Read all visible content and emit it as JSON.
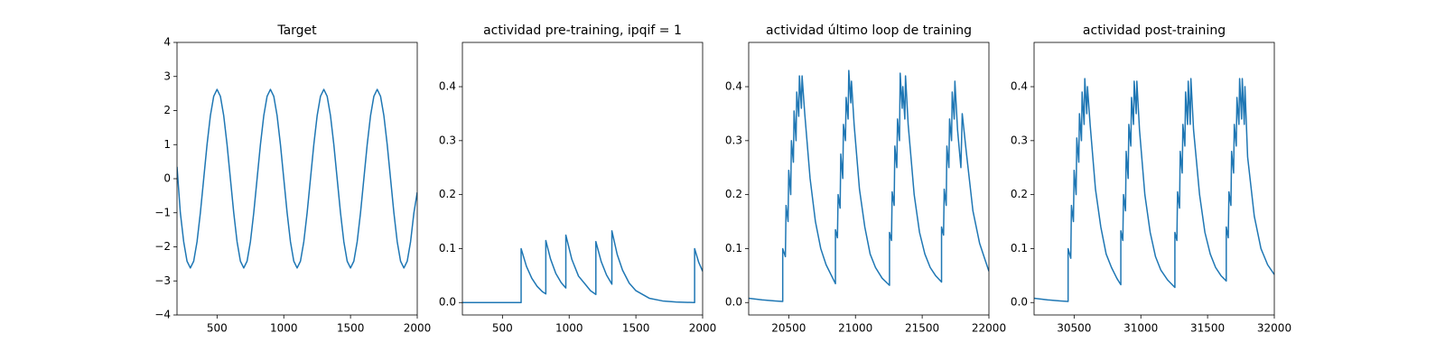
{
  "chart_data": [
    {
      "type": "line",
      "title": "Target",
      "color": "#1f77b4",
      "xlim": [
        200,
        2000
      ],
      "ylim": [
        -4,
        4
      ],
      "xticks": [
        500,
        1000,
        1500,
        2000
      ],
      "yticks": [
        {
          "value": -4,
          "label": "−4"
        },
        {
          "value": -3,
          "label": "−3"
        },
        {
          "value": -2,
          "label": "−2"
        },
        {
          "value": -1,
          "label": "−1"
        },
        0,
        1,
        2,
        3,
        4
      ],
      "x": [
        200,
        225,
        250,
        275,
        300,
        325,
        350,
        375,
        400,
        425,
        450,
        475,
        500,
        525,
        550,
        575,
        600,
        625,
        650,
        675,
        700,
        725,
        750,
        775,
        800,
        825,
        850,
        875,
        900,
        925,
        950,
        975,
        1000,
        1025,
        1050,
        1075,
        1100,
        1125,
        1150,
        1175,
        1200,
        1225,
        1250,
        1275,
        1300,
        1325,
        1350,
        1375,
        1400,
        1425,
        1450,
        1475,
        1500,
        1525,
        1550,
        1575,
        1600,
        1625,
        1650,
        1675,
        1700,
        1725,
        1750,
        1775,
        1800,
        1825,
        1850,
        1875,
        1900,
        1925,
        1950,
        1975,
        2000
      ],
      "values": [
        0.35,
        -1.0,
        -1.85,
        -2.42,
        -2.62,
        -2.42,
        -1.85,
        -1.0,
        0,
        1.0,
        1.85,
        2.42,
        2.62,
        2.42,
        1.85,
        1.0,
        0,
        -1.0,
        -1.85,
        -2.42,
        -2.62,
        -2.42,
        -1.85,
        -1.0,
        0,
        1.0,
        1.85,
        2.42,
        2.62,
        2.42,
        1.85,
        1.0,
        0,
        -1.0,
        -1.85,
        -2.42,
        -2.62,
        -2.42,
        -1.85,
        -1.0,
        0,
        1.0,
        1.85,
        2.42,
        2.62,
        2.42,
        1.85,
        1.0,
        0,
        -1.0,
        -1.85,
        -2.42,
        -2.62,
        -2.42,
        -1.85,
        -1.0,
        0,
        1.0,
        1.85,
        2.42,
        2.62,
        2.42,
        1.85,
        1.0,
        0,
        -1.0,
        -1.85,
        -2.42,
        -2.62,
        -2.42,
        -1.85,
        -1.0,
        -0.4
      ]
    },
    {
      "type": "line",
      "title": "actividad pre-training, ipqif = 1",
      "color": "#1f77b4",
      "xlim": [
        200,
        2000
      ],
      "ylim": [
        -0.023,
        0.482
      ],
      "xticks": [
        500,
        1000,
        1500,
        2000
      ],
      "yticks": [
        {
          "value": 0,
          "label": "0.0"
        },
        0.1,
        0.2,
        0.3,
        0.4
      ],
      "x": [
        200,
        640,
        640,
        680,
        720,
        760,
        800,
        825,
        825,
        860,
        900,
        940,
        975,
        975,
        1020,
        1070,
        1120,
        1160,
        1200,
        1200,
        1240,
        1280,
        1320,
        1320,
        1360,
        1400,
        1450,
        1500,
        1600,
        1700,
        1800,
        1940,
        1940,
        1970,
        2000
      ],
      "values": [
        0,
        0,
        0.1,
        0.067,
        0.045,
        0.03,
        0.02,
        0.016,
        0.115,
        0.081,
        0.054,
        0.037,
        0.027,
        0.125,
        0.08,
        0.049,
        0.034,
        0.022,
        0.015,
        0.113,
        0.076,
        0.051,
        0.034,
        0.133,
        0.089,
        0.06,
        0.036,
        0.022,
        0.008,
        0.003,
        0.001,
        0,
        0.1,
        0.075,
        0.058
      ]
    },
    {
      "type": "line",
      "title": "actividad último loop de training",
      "color": "#1f77b4",
      "xlim": [
        20200,
        22000
      ],
      "ylim": [
        -0.023,
        0.482
      ],
      "xticks": [
        20500,
        21000,
        21500,
        22000
      ],
      "yticks": [
        {
          "value": 0,
          "label": "0.0"
        },
        0.1,
        0.2,
        0.3,
        0.4
      ],
      "x": [
        20200,
        20300,
        20400,
        20455,
        20455,
        20475,
        20480,
        20495,
        20500,
        20515,
        20520,
        20535,
        20540,
        20555,
        20560,
        20575,
        20580,
        20595,
        20600,
        20620,
        20660,
        20700,
        20740,
        20780,
        20820,
        20850,
        20850,
        20865,
        20870,
        20885,
        20890,
        20905,
        20910,
        20925,
        20930,
        20945,
        20950,
        20965,
        20970,
        20990,
        21030,
        21070,
        21110,
        21150,
        21200,
        21255,
        21255,
        21270,
        21275,
        21290,
        21295,
        21310,
        21315,
        21330,
        21335,
        21350,
        21355,
        21370,
        21375,
        21395,
        21440,
        21480,
        21520,
        21560,
        21600,
        21645,
        21645,
        21660,
        21665,
        21680,
        21685,
        21700,
        21705,
        21720,
        21725,
        21740,
        21745,
        21765,
        21790,
        21800,
        21830,
        21880,
        21930,
        21970,
        22000
      ],
      "values": [
        0.008,
        0.005,
        0.003,
        0.002,
        0.1,
        0.085,
        0.18,
        0.15,
        0.245,
        0.2,
        0.3,
        0.26,
        0.355,
        0.3,
        0.39,
        0.345,
        0.42,
        0.36,
        0.42,
        0.35,
        0.23,
        0.15,
        0.1,
        0.07,
        0.05,
        0.035,
        0.135,
        0.12,
        0.2,
        0.175,
        0.275,
        0.23,
        0.33,
        0.3,
        0.38,
        0.34,
        0.43,
        0.37,
        0.41,
        0.33,
        0.21,
        0.14,
        0.09,
        0.065,
        0.045,
        0.032,
        0.13,
        0.115,
        0.205,
        0.18,
        0.29,
        0.25,
        0.34,
        0.3,
        0.425,
        0.36,
        0.4,
        0.34,
        0.42,
        0.33,
        0.2,
        0.13,
        0.09,
        0.065,
        0.05,
        0.038,
        0.14,
        0.125,
        0.21,
        0.18,
        0.29,
        0.25,
        0.34,
        0.3,
        0.39,
        0.34,
        0.41,
        0.32,
        0.25,
        0.35,
        0.28,
        0.17,
        0.11,
        0.08,
        0.058
      ]
    },
    {
      "type": "line",
      "title": "actividad post-training",
      "color": "#1f77b4",
      "xlim": [
        30200,
        32000
      ],
      "ylim": [
        -0.023,
        0.482
      ],
      "xticks": [
        30500,
        31000,
        31500,
        32000
      ],
      "yticks": [
        {
          "value": 0,
          "label": "0.0"
        },
        0.1,
        0.2,
        0.3,
        0.4
      ],
      "x": [
        30200,
        30300,
        30400,
        30455,
        30455,
        30475,
        30480,
        30495,
        30500,
        30515,
        30520,
        30535,
        30540,
        30555,
        30560,
        30575,
        30580,
        30595,
        30600,
        30620,
        30660,
        30700,
        30740,
        30780,
        30820,
        30850,
        30850,
        30865,
        30870,
        30885,
        30890,
        30905,
        30910,
        30925,
        30930,
        30945,
        30950,
        30965,
        30970,
        30990,
        31030,
        31070,
        31110,
        31150,
        31200,
        31255,
        31255,
        31270,
        31275,
        31290,
        31295,
        31310,
        31315,
        31330,
        31335,
        31350,
        31355,
        31370,
        31375,
        31395,
        31440,
        31480,
        31520,
        31560,
        31600,
        31640,
        31640,
        31655,
        31660,
        31675,
        31680,
        31695,
        31700,
        31715,
        31720,
        31735,
        31740,
        31755,
        31760,
        31775,
        31780,
        31800,
        31850,
        31900,
        31950,
        32000
      ],
      "values": [
        0.008,
        0.005,
        0.003,
        0.002,
        0.1,
        0.082,
        0.18,
        0.15,
        0.245,
        0.2,
        0.305,
        0.26,
        0.35,
        0.3,
        0.39,
        0.33,
        0.415,
        0.35,
        0.4,
        0.33,
        0.21,
        0.14,
        0.09,
        0.065,
        0.045,
        0.033,
        0.133,
        0.115,
        0.2,
        0.17,
        0.28,
        0.23,
        0.33,
        0.29,
        0.38,
        0.33,
        0.41,
        0.35,
        0.41,
        0.32,
        0.2,
        0.13,
        0.085,
        0.06,
        0.042,
        0.028,
        0.13,
        0.115,
        0.205,
        0.175,
        0.28,
        0.24,
        0.33,
        0.29,
        0.39,
        0.33,
        0.41,
        0.33,
        0.415,
        0.32,
        0.2,
        0.13,
        0.09,
        0.065,
        0.05,
        0.04,
        0.14,
        0.12,
        0.205,
        0.18,
        0.28,
        0.24,
        0.33,
        0.29,
        0.38,
        0.33,
        0.415,
        0.34,
        0.415,
        0.33,
        0.4,
        0.27,
        0.16,
        0.1,
        0.07,
        0.052
      ]
    }
  ]
}
